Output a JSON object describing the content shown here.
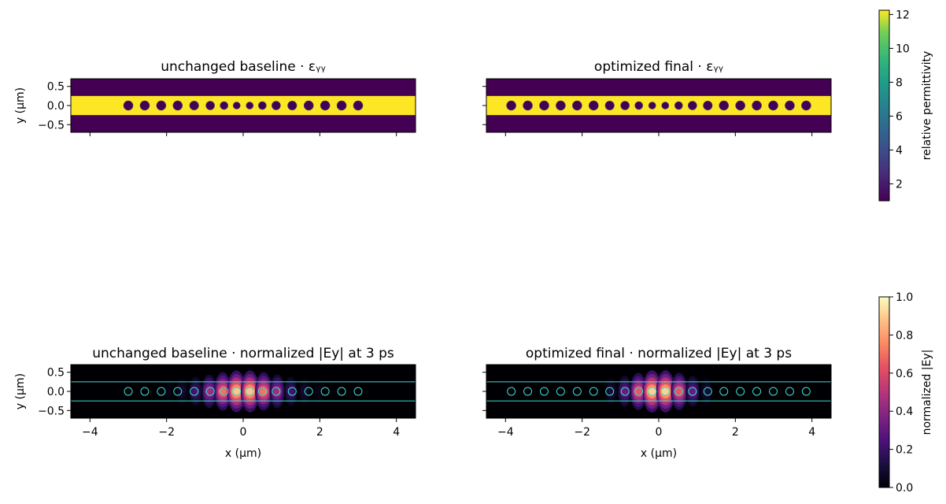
{
  "chart_data": [
    {
      "type": "heatmap",
      "panel": "top-left",
      "title": "unchanged baseline · εᵧᵧ",
      "ylabel": "y (μm)",
      "xlabel": "",
      "xlim": [
        -4.5,
        4.5
      ],
      "ylim": [
        -0.7,
        0.7
      ],
      "yticks": [
        "−0.5",
        "0.0",
        "0.5"
      ],
      "yticks_values": [
        -0.5,
        0.0,
        0.5
      ],
      "xticks_values": [
        -4,
        -2,
        0,
        2,
        4
      ],
      "xticks_labels_shown": false,
      "waveguide_y": [
        -0.25,
        0.25
      ],
      "waveguide_permittivity": 12.25,
      "cladding_permittivity": 1.0,
      "holes_x": [
        -3.0,
        -2.57,
        -2.14,
        -1.71,
        -1.28,
        -0.86,
        -0.5,
        -0.17,
        0.17,
        0.5,
        0.86,
        1.28,
        1.71,
        2.14,
        2.57,
        3.0
      ],
      "holes_r": [
        0.12,
        0.12,
        0.12,
        0.12,
        0.115,
        0.11,
        0.1,
        0.09,
        0.09,
        0.1,
        0.11,
        0.115,
        0.12,
        0.12,
        0.12,
        0.12
      ]
    },
    {
      "type": "heatmap",
      "panel": "top-right",
      "title": "optimized final · εᵧᵧ",
      "ylabel": "",
      "xlabel": "",
      "xlim": [
        -4.5,
        4.5
      ],
      "ylim": [
        -0.7,
        0.7
      ],
      "yticks_values": [
        -0.5,
        0.0,
        0.5
      ],
      "xticks_values": [
        -4,
        -2,
        0,
        2,
        4
      ],
      "xticks_labels_shown": false,
      "waveguide_y": [
        -0.25,
        0.25
      ],
      "waveguide_permittivity": 12.25,
      "cladding_permittivity": 1.0,
      "holes_x": [
        -3.85,
        -3.42,
        -2.99,
        -2.56,
        -2.13,
        -1.7,
        -1.28,
        -0.88,
        -0.52,
        -0.17,
        0.17,
        0.52,
        0.88,
        1.28,
        1.7,
        2.13,
        2.56,
        2.99,
        3.42,
        3.85
      ],
      "holes_r": [
        0.12,
        0.12,
        0.12,
        0.12,
        0.12,
        0.12,
        0.115,
        0.11,
        0.1,
        0.09,
        0.09,
        0.1,
        0.11,
        0.115,
        0.12,
        0.12,
        0.12,
        0.12,
        0.12,
        0.12
      ]
    },
    {
      "type": "heatmap",
      "panel": "bottom-left",
      "title": "unchanged baseline · normalized |Ey| at 3 ps",
      "ylabel": "y (μm)",
      "xlabel": "x (μm)",
      "xlim": [
        -4.5,
        4.5
      ],
      "ylim": [
        -0.7,
        0.7
      ],
      "yticks": [
        "−0.5",
        "0.0",
        "0.5"
      ],
      "yticks_values": [
        -0.5,
        0.0,
        0.5
      ],
      "xticks": [
        "−4",
        "−2",
        "0",
        "2",
        "4"
      ],
      "xticks_values": [
        -4,
        -2,
        0,
        2,
        4
      ],
      "waveguide_y": [
        -0.25,
        0.25
      ],
      "holes_x": [
        -3.0,
        -2.57,
        -2.14,
        -1.71,
        -1.28,
        -0.86,
        -0.5,
        -0.17,
        0.17,
        0.5,
        0.86,
        1.28,
        1.71,
        2.14,
        2.57,
        3.0
      ],
      "field_peaks_x": [
        -0.72,
        -0.36,
        0.0,
        0.36,
        0.72,
        1.06
      ],
      "field_peaks_amp": [
        0.55,
        0.85,
        1.0,
        0.85,
        0.55,
        0.3
      ],
      "field_envelope_sigma": 0.75,
      "field_period": 0.355
    },
    {
      "type": "heatmap",
      "panel": "bottom-right",
      "title": "optimized final · normalized |Ey| at 3 ps",
      "ylabel": "",
      "xlabel": "x (μm)",
      "xlim": [
        -4.5,
        4.5
      ],
      "ylim": [
        -0.7,
        0.7
      ],
      "yticks_values": [
        -0.5,
        0.0,
        0.5
      ],
      "xticks": [
        "−4",
        "−2",
        "0",
        "2",
        "4"
      ],
      "xticks_values": [
        -4,
        -2,
        0,
        2,
        4
      ],
      "waveguide_y": [
        -0.25,
        0.25
      ],
      "holes_x": [
        -3.85,
        -3.42,
        -2.99,
        -2.56,
        -2.13,
        -1.7,
        -1.28,
        -0.88,
        -0.52,
        -0.17,
        0.17,
        0.52,
        0.88,
        1.28,
        1.7,
        2.13,
        2.56,
        2.99,
        3.42,
        3.85
      ],
      "field_envelope_sigma": 0.6,
      "field_period": 0.355
    }
  ],
  "colorbars": [
    {
      "label": "relative permittivity",
      "range": [
        1.0,
        12.25
      ],
      "ticks": [
        2,
        4,
        6,
        8,
        10,
        12
      ],
      "tick_labels": [
        "2",
        "4",
        "6",
        "8",
        "10",
        "12"
      ],
      "colormap": "viridis"
    },
    {
      "label": "normalized |Ey|",
      "range": [
        0.0,
        1.0
      ],
      "ticks": [
        0.0,
        0.2,
        0.4,
        0.6,
        0.8,
        1.0
      ],
      "tick_labels": [
        "0.0",
        "0.2",
        "0.4",
        "0.6",
        "0.8",
        "1.0"
      ],
      "colormap": "magma"
    }
  ],
  "colors": {
    "low_permittivity": "#440154",
    "high_permittivity": "#fde725",
    "field_background": "#000004",
    "overlay_line": "#40e0d0"
  }
}
